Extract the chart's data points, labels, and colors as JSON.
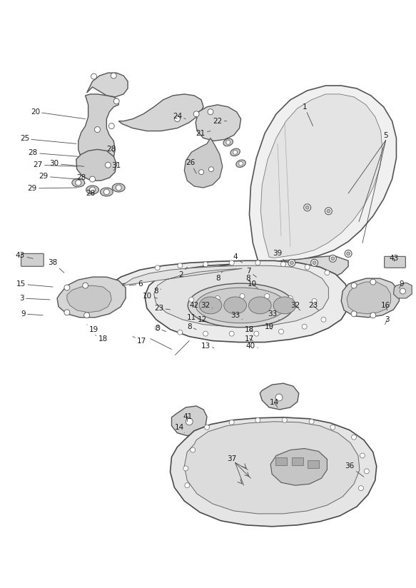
{
  "bg_color": "#ffffff",
  "line_color": "#4a4a4a",
  "text_color": "#1a1a1a",
  "fig_width": 5.83,
  "fig_height": 8.24,
  "dpi": 100,
  "labels_topleft": [
    [
      "20",
      47,
      155
    ],
    [
      "25",
      32,
      193
    ],
    [
      "28",
      44,
      213
    ],
    [
      "28",
      155,
      208
    ],
    [
      "27",
      51,
      230
    ],
    [
      "30",
      74,
      228
    ],
    [
      "29",
      59,
      246
    ],
    [
      "29",
      43,
      263
    ],
    [
      "28",
      112,
      248
    ],
    [
      "28",
      125,
      270
    ],
    [
      "31",
      162,
      231
    ],
    [
      "24",
      248,
      161
    ],
    [
      "22",
      305,
      168
    ],
    [
      "21",
      281,
      185
    ],
    [
      "26",
      267,
      227
    ]
  ],
  "labels_windscreen": [
    [
      "1",
      428,
      148
    ],
    [
      "5",
      543,
      188
    ]
  ],
  "labels_middle": [
    [
      "43",
      26,
      358
    ],
    [
      "38",
      72,
      368
    ],
    [
      "15",
      27,
      398
    ],
    [
      "3",
      28,
      418
    ],
    [
      "9",
      30,
      440
    ],
    [
      "6",
      196,
      398
    ],
    [
      "8",
      218,
      408
    ],
    [
      "10",
      206,
      415
    ],
    [
      "23",
      222,
      432
    ],
    [
      "2",
      253,
      385
    ],
    [
      "42",
      272,
      428
    ],
    [
      "32",
      288,
      428
    ],
    [
      "11",
      268,
      445
    ],
    [
      "12",
      283,
      448
    ],
    [
      "8",
      265,
      458
    ],
    [
      "8",
      306,
      390
    ],
    [
      "8",
      220,
      460
    ],
    [
      "4",
      330,
      360
    ],
    [
      "39",
      390,
      355
    ],
    [
      "7",
      349,
      380
    ],
    [
      "8",
      348,
      390
    ],
    [
      "10",
      354,
      398
    ],
    [
      "33",
      330,
      442
    ],
    [
      "33",
      383,
      440
    ],
    [
      "32",
      415,
      428
    ],
    [
      "23",
      440,
      428
    ],
    [
      "19",
      378,
      458
    ],
    [
      "18",
      350,
      462
    ],
    [
      "17",
      350,
      475
    ],
    [
      "13",
      288,
      485
    ],
    [
      "40",
      352,
      485
    ],
    [
      "19",
      130,
      462
    ],
    [
      "18",
      143,
      475
    ],
    [
      "17",
      198,
      478
    ],
    [
      "43",
      555,
      362
    ],
    [
      "9",
      565,
      398
    ],
    [
      "16",
      543,
      428
    ],
    [
      "3",
      545,
      448
    ]
  ],
  "labels_lower": [
    [
      "41",
      263,
      585
    ],
    [
      "14",
      251,
      600
    ],
    [
      "14",
      385,
      565
    ],
    [
      "37",
      325,
      645
    ],
    [
      "36",
      492,
      655
    ]
  ]
}
